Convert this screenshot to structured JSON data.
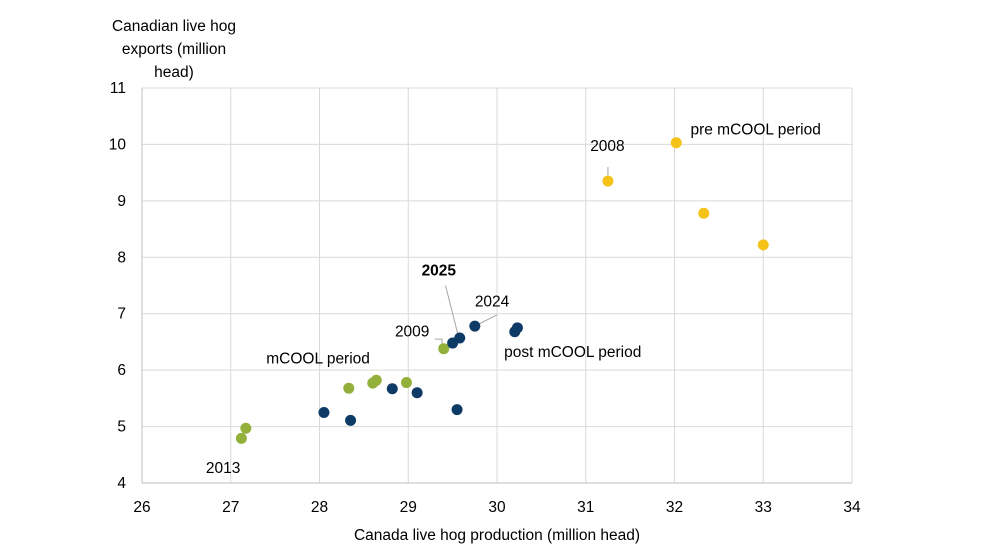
{
  "chart_data": {
    "type": "scatter",
    "title": "",
    "ylabel_lines": [
      "Canadian live hog",
      "exports (million",
      "head)"
    ],
    "xlabel": "Canada live hog production (million head)",
    "xlim": [
      26,
      34
    ],
    "ylim": [
      4,
      11
    ],
    "xticks": [
      "26",
      "27",
      "28",
      "29",
      "30",
      "31",
      "32",
      "33",
      "34"
    ],
    "yticks": [
      "4",
      "5",
      "6",
      "7",
      "8",
      "9",
      "10",
      "11"
    ],
    "grid": true,
    "colors": {
      "pre": "#F5C218",
      "mcool": "#92B03A",
      "post": "#0E3B66"
    },
    "series": [
      {
        "name": "pre mCOOL period",
        "color": "#F5C218",
        "points": [
          {
            "x": 31.25,
            "y": 9.35
          },
          {
            "x": 32.02,
            "y": 10.03
          },
          {
            "x": 32.33,
            "y": 8.78
          },
          {
            "x": 33.0,
            "y": 8.22
          }
        ]
      },
      {
        "name": "mCOOL period",
        "color": "#92B03A",
        "points": [
          {
            "x": 29.4,
            "y": 6.38
          },
          {
            "x": 28.98,
            "y": 5.78
          },
          {
            "x": 28.64,
            "y": 5.82
          },
          {
            "x": 28.6,
            "y": 5.77
          },
          {
            "x": 28.33,
            "y": 5.68
          },
          {
            "x": 27.17,
            "y": 4.97
          },
          {
            "x": 27.12,
            "y": 4.79
          }
        ]
      },
      {
        "name": "post mCOOL period",
        "color": "#0E3B66",
        "points": [
          {
            "x": 29.58,
            "y": 6.57
          },
          {
            "x": 29.5,
            "y": 6.48
          },
          {
            "x": 29.75,
            "y": 6.78
          },
          {
            "x": 30.23,
            "y": 6.75
          },
          {
            "x": 30.2,
            "y": 6.68
          },
          {
            "x": 28.82,
            "y": 5.67
          },
          {
            "x": 29.1,
            "y": 5.6
          },
          {
            "x": 29.55,
            "y": 5.3
          },
          {
            "x": 28.05,
            "y": 5.25
          },
          {
            "x": 28.35,
            "y": 5.11
          }
        ]
      }
    ],
    "annotations": [
      {
        "text": "pre mCOOL period",
        "x": 32.18,
        "y": 10.18,
        "color": "#F5C218",
        "bold": false
      },
      {
        "text": "mCOOL period",
        "x": 27.4,
        "y": 6.12,
        "color": "#8B9A5B",
        "bold": false
      },
      {
        "text": "post mCOOL period",
        "x": 30.08,
        "y": 6.23,
        "color": "#0E3B66",
        "bold": false
      },
      {
        "text": "2008",
        "x": 31.05,
        "y": 9.88,
        "color": "#000000",
        "bold": false,
        "leader": [
          [
            31.25,
            9.6
          ],
          [
            31.25,
            9.42
          ]
        ]
      },
      {
        "text": "2025",
        "x": 29.15,
        "y": 7.68,
        "color": "#000000",
        "bold": true,
        "leader": [
          [
            29.42,
            7.5
          ],
          [
            29.56,
            6.63
          ]
        ]
      },
      {
        "text": "2024",
        "x": 29.75,
        "y": 7.13,
        "color": "#000000",
        "bold": false,
        "leader": [
          [
            30.0,
            6.98
          ],
          [
            29.8,
            6.82
          ]
        ]
      },
      {
        "text": "2009",
        "x": 28.85,
        "y": 6.6,
        "color": "#000000",
        "bold": false,
        "leader": [
          [
            29.3,
            6.55
          ],
          [
            29.38,
            6.55
          ],
          [
            29.38,
            6.43
          ]
        ]
      },
      {
        "text": "2013",
        "x": 26.72,
        "y": 4.18,
        "color": "#000000",
        "bold": false
      }
    ]
  }
}
